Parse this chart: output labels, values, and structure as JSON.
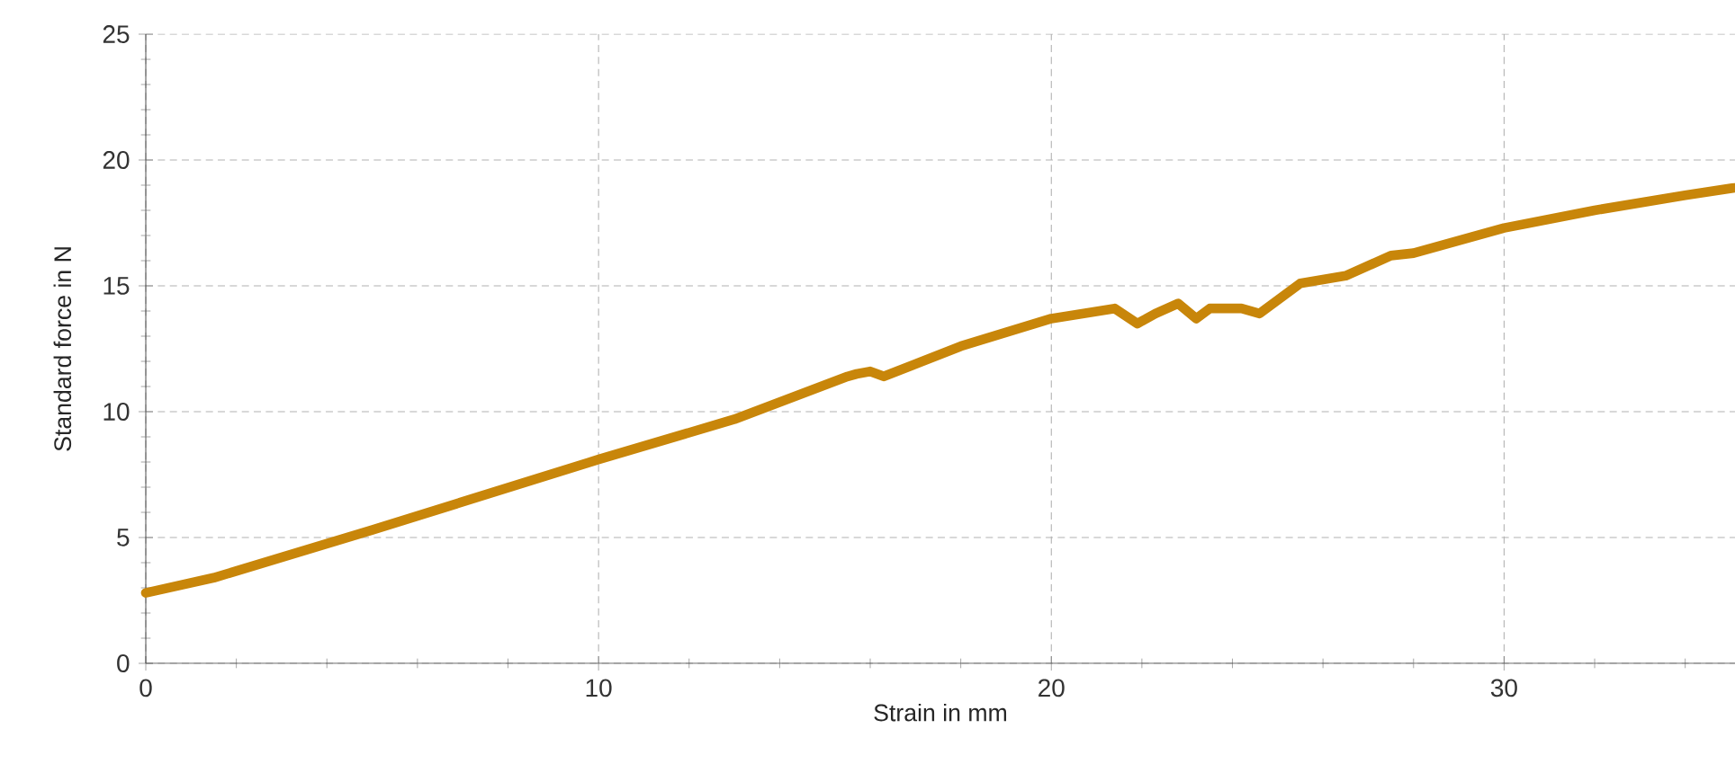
{
  "chart_data": {
    "type": "line",
    "xlabel": "Strain in mm",
    "ylabel": "Standard force in N",
    "x": [
      0,
      1.5,
      5,
      10,
      13,
      15.5,
      15.7,
      16,
      16.3,
      18,
      20,
      21.4,
      21.9,
      22.3,
      22.8,
      23.2,
      23.5,
      24.2,
      24.6,
      25.5,
      26.5,
      27.5,
      28,
      30,
      32,
      34,
      35.1
    ],
    "series": [
      {
        "color": "#c8860a",
        "values": [
          2.8,
          3.4,
          5.3,
          8.1,
          9.7,
          11.4,
          11.5,
          11.6,
          11.4,
          12.6,
          13.7,
          14.1,
          13.5,
          13.9,
          14.3,
          13.7,
          14.1,
          14.1,
          13.9,
          15.1,
          15.4,
          16.2,
          16.3,
          17.3,
          18.0,
          18.6,
          18.9
        ]
      }
    ],
    "xlim": [
      0,
      35.1
    ],
    "ylim": [
      0,
      25
    ],
    "xticks": [
      0,
      {
        "value": 2,
        "label": null
      },
      {
        "value": 4,
        "label": null
      },
      {
        "value": 6,
        "label": null
      },
      {
        "value": 8,
        "label": null
      },
      10,
      {
        "value": 12,
        "label": null
      },
      {
        "value": 14,
        "label": null
      },
      {
        "value": 16,
        "label": null
      },
      {
        "value": 18,
        "label": null
      },
      20,
      {
        "value": 22,
        "label": null
      },
      {
        "value": 24,
        "label": null
      },
      {
        "value": 26,
        "label": null
      },
      {
        "value": 28,
        "label": null
      },
      30,
      {
        "value": 32,
        "label": null
      },
      {
        "value": 34,
        "label": null
      }
    ],
    "yticks": [
      0,
      {
        "value": 1,
        "label": null
      },
      {
        "value": 2,
        "label": null
      },
      {
        "value": 3,
        "label": null
      },
      {
        "value": 4,
        "label": null
      },
      5,
      {
        "value": 6,
        "label": null
      },
      {
        "value": 7,
        "label": null
      },
      {
        "value": 8,
        "label": null
      },
      {
        "value": 9,
        "label": null
      },
      10,
      {
        "value": 11,
        "label": null
      },
      {
        "value": 12,
        "label": null
      },
      {
        "value": 13,
        "label": null
      },
      {
        "value": 14,
        "label": null
      },
      15,
      {
        "value": 16,
        "label": null
      },
      {
        "value": 17,
        "label": null
      },
      {
        "value": 18,
        "label": null
      },
      {
        "value": 19,
        "label": null
      },
      20,
      {
        "value": 21,
        "label": null
      },
      {
        "value": 22,
        "label": null
      },
      {
        "value": 23,
        "label": null
      },
      {
        "value": 24,
        "label": null
      },
      25
    ],
    "grid": true,
    "marker": "none",
    "line_style": "solid"
  }
}
